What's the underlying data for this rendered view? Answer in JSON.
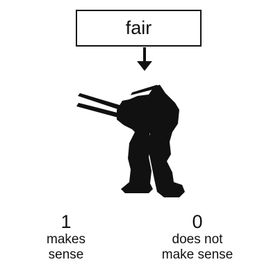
{
  "word": "fair",
  "figure_icon": "mech-robot-silhouette-icon",
  "colors": {
    "ink": "#111111",
    "background": "#ffffff"
  },
  "options": [
    {
      "value": "1",
      "label_lines": [
        "makes",
        "sense"
      ]
    },
    {
      "value": "0",
      "label_lines": [
        "does not",
        "make sense"
      ]
    }
  ]
}
